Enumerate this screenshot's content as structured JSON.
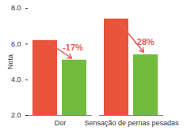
{
  "chart_data": {
    "type": "bar",
    "y_label": "Nota",
    "categories": [
      "Dor",
      "Sensação de pernas pesadas"
    ],
    "series": [
      {
        "color": "#e8533a",
        "values": [
          6.2,
          7.4
        ]
      },
      {
        "color": "#72bb3e",
        "values": [
          5.1,
          5.4
        ]
      }
    ],
    "ylim": [
      2,
      8
    ],
    "yticks": [
      2,
      4,
      6,
      8
    ],
    "grid": false,
    "annotations": [
      {
        "text": "-17%",
        "category": "Dor"
      },
      {
        "text": "-28%",
        "category": "Sensação de pernas pesadas"
      }
    ]
  }
}
